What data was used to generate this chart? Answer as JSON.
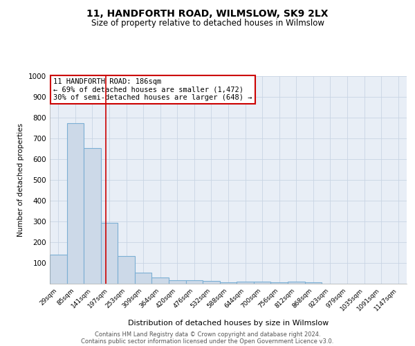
{
  "title": "11, HANDFORTH ROAD, WILMSLOW, SK9 2LX",
  "subtitle": "Size of property relative to detached houses in Wilmslow",
  "xlabel": "Distribution of detached houses by size in Wilmslow",
  "ylabel": "Number of detached properties",
  "bar_labels": [
    "29sqm",
    "85sqm",
    "141sqm",
    "197sqm",
    "253sqm",
    "309sqm",
    "364sqm",
    "420sqm",
    "476sqm",
    "532sqm",
    "588sqm",
    "644sqm",
    "700sqm",
    "756sqm",
    "812sqm",
    "868sqm",
    "923sqm",
    "979sqm",
    "1035sqm",
    "1091sqm",
    "1147sqm"
  ],
  "bar_heights": [
    140,
    775,
    655,
    295,
    135,
    55,
    30,
    18,
    18,
    12,
    7,
    10,
    10,
    8,
    10,
    8,
    0,
    0,
    0,
    0,
    0
  ],
  "bar_color": "#ccd9e8",
  "bar_edge_color": "#7bafd4",
  "vline_x": 2.8,
  "vline_color": "#cc0000",
  "annotation_text": "11 HANDFORTH ROAD: 186sqm\n← 69% of detached houses are smaller (1,472)\n30% of semi-detached houses are larger (648) →",
  "annotation_box_color": "#ffffff",
  "annotation_box_edge_color": "#cc0000",
  "ylim": [
    0,
    1000
  ],
  "yticks": [
    0,
    100,
    200,
    300,
    400,
    500,
    600,
    700,
    800,
    900,
    1000
  ],
  "grid_color": "#c8d4e4",
  "bg_color": "#e8eef6",
  "footer_line1": "Contains HM Land Registry data © Crown copyright and database right 2024.",
  "footer_line2": "Contains public sector information licensed under the Open Government Licence v3.0."
}
